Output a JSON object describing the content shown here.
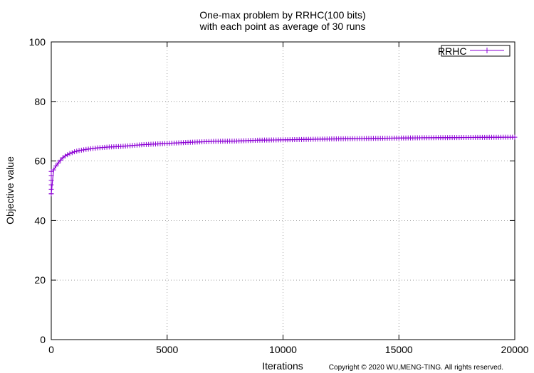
{
  "chart_data": {
    "type": "line",
    "title": "One-max problem by RRHC(100 bits)",
    "subtitle": "with each point as average of 30 runs",
    "xlabel": "Iterations",
    "ylabel": "Objective value",
    "xlim": [
      0,
      20000
    ],
    "ylim": [
      0,
      100
    ],
    "x_ticks": [
      "0",
      "5000",
      "10000",
      "15000",
      "20000"
    ],
    "y_ticks": [
      "0",
      "20",
      "40",
      "60",
      "80",
      "100"
    ],
    "grid": true,
    "legend_position": "top-right",
    "series": [
      {
        "name": "RRHC",
        "color": "#8b00d4",
        "marker": "plus",
        "x": [
          0,
          100,
          200,
          300,
          400,
          500,
          600,
          800,
          1000,
          1200,
          1500,
          2000,
          2500,
          3000,
          3500,
          4000,
          5000,
          6000,
          7000,
          8000,
          9000,
          10000,
          12000,
          14000,
          16000,
          18000,
          20000
        ],
        "y": [
          49,
          57,
          58.3,
          59.3,
          60.3,
          61.1,
          61.7,
          62.5,
          63.1,
          63.5,
          63.9,
          64.4,
          64.7,
          64.9,
          65.2,
          65.5,
          65.9,
          66.3,
          66.6,
          66.7,
          67.0,
          67.1,
          67.4,
          67.6,
          67.8,
          67.9,
          68.0
        ]
      }
    ]
  },
  "copyright": "Copyright © 2020 WU,MENG-TING. All rights reserved."
}
